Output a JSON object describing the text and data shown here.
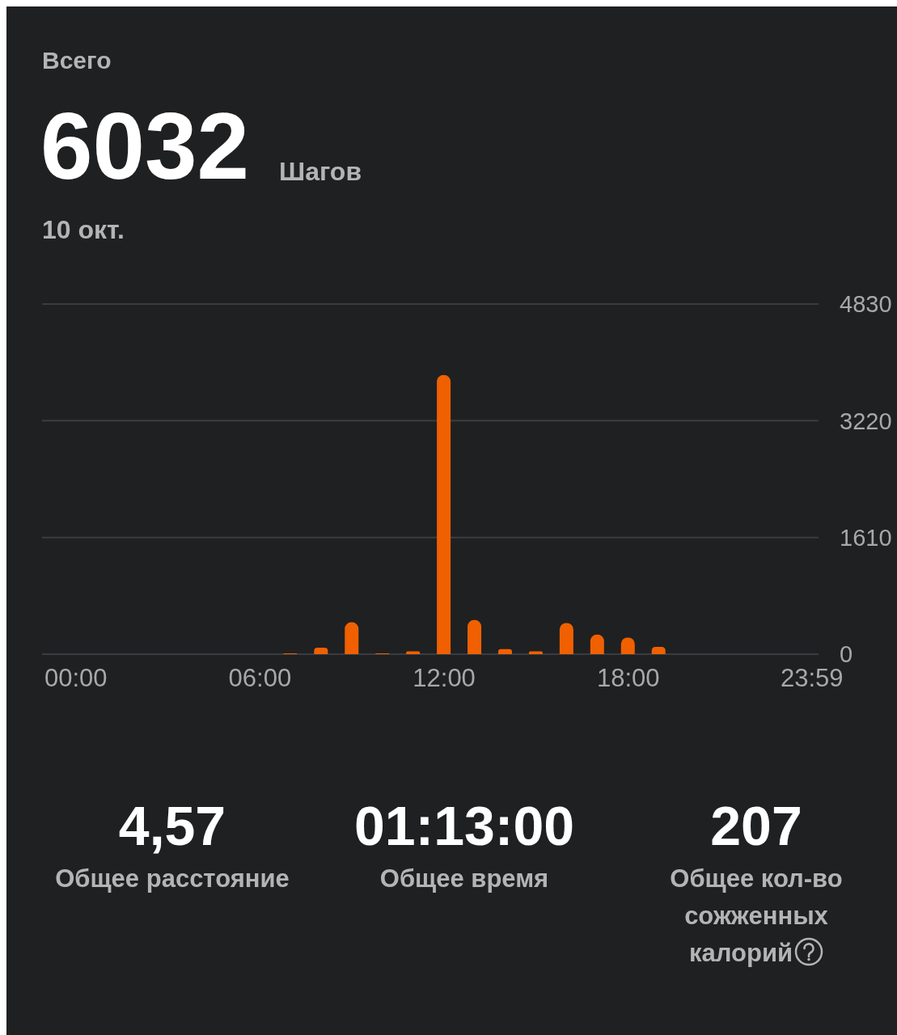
{
  "chart_data": {
    "type": "bar",
    "title": "Всего",
    "annotations": [
      "6032",
      "Шагов",
      "10 окт.",
      "4,57",
      "Общее расстояние",
      "01:13:00",
      "Общее время",
      "207",
      "Общее кол-во сожженных калорий"
    ],
    "x": [
      0,
      1,
      2,
      3,
      4,
      5,
      6,
      7,
      8,
      9,
      10,
      11,
      12,
      13,
      14,
      15,
      16,
      17,
      18,
      19,
      20,
      21,
      22,
      23
    ],
    "values": [
      0,
      0,
      0,
      0,
      0,
      0,
      0,
      10,
      90,
      440,
      10,
      40,
      3850,
      470,
      70,
      40,
      430,
      270,
      230,
      100,
      0,
      0,
      0,
      0
    ],
    "color": "#f06000",
    "xlim": [
      -1.1,
      24.2
    ],
    "xticks": [
      {
        "value": 0,
        "label": "00:00"
      },
      {
        "value": 6,
        "label": "06:00"
      },
      {
        "value": 12,
        "label": "12:00"
      },
      {
        "value": 18,
        "label": "18:00"
      },
      {
        "value": 23.983,
        "label": "23:59"
      }
    ],
    "ylim": [
      0,
      4830
    ],
    "yticks": [
      0,
      1610,
      3220,
      4830
    ],
    "grid": "y",
    "legend": false
  }
}
